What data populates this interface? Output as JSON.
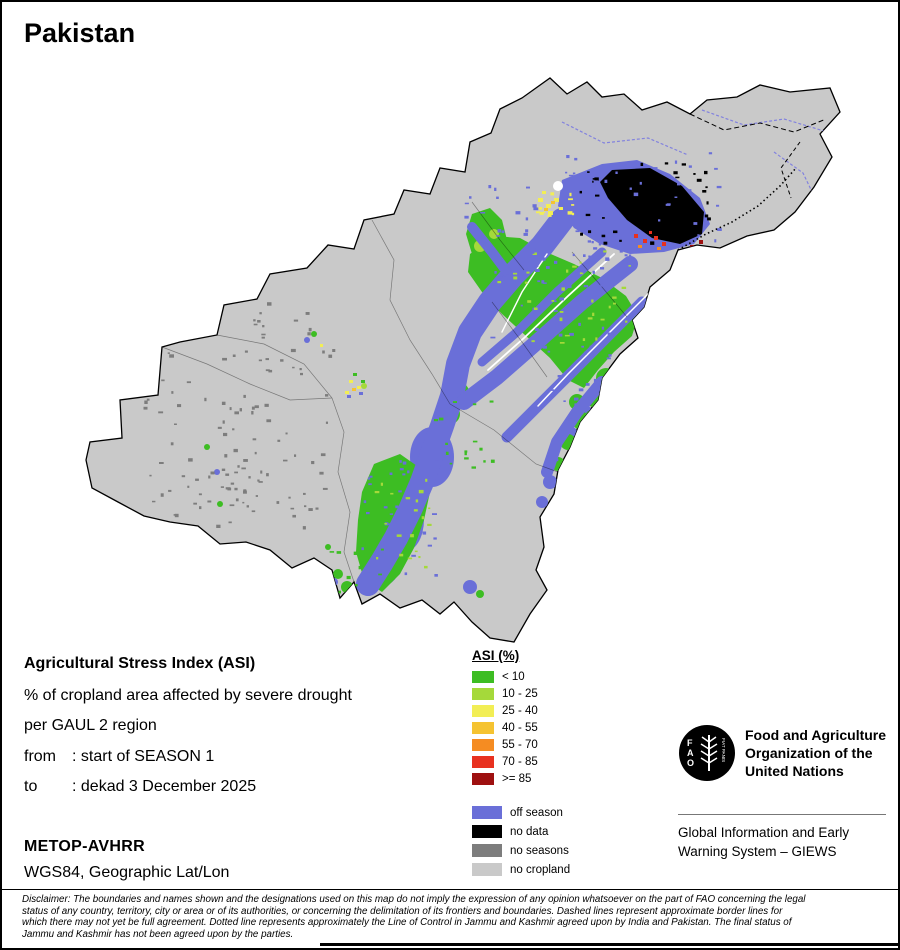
{
  "title": "Pakistan",
  "info": {
    "heading": "Agricultural Stress Index (ASI)",
    "line1": "% of cropland area affected by severe drought",
    "line2": "per GAUL 2 region",
    "from_label": "from",
    "from_value": ": start of SEASON 1",
    "to_label": "to",
    "to_value": ": dekad 3 December 2025",
    "sensor": "METOP-AVHRR",
    "projection": "WGS84, Geographic Lat/Lon"
  },
  "legend": {
    "title": "ASI (%)",
    "classes": [
      {
        "label": "< 10",
        "color": "#3dbd23"
      },
      {
        "label": "10 - 25",
        "color": "#a5d93a"
      },
      {
        "label": "25 - 40",
        "color": "#f2ee55"
      },
      {
        "label": "40 - 55",
        "color": "#f5c331"
      },
      {
        "label": "55 - 70",
        "color": "#f58c22"
      },
      {
        "label": "70 - 85",
        "color": "#e8311f"
      },
      {
        "label": ">= 85",
        "color": "#9e1010"
      }
    ],
    "extra": [
      {
        "label": "off season",
        "color": "#6a6fd8"
      },
      {
        "label": "no data",
        "color": "#000000"
      },
      {
        "label": "no seasons",
        "color": "#7d7d7d"
      },
      {
        "label": "no cropland",
        "color": "#c9c9c9"
      }
    ]
  },
  "org": {
    "logo_letters": [
      "F",
      "A",
      "O"
    ],
    "logo_motto": "FIAT PANIS",
    "fao_lines": [
      "Food and Agriculture",
      "Organization of the",
      "United Nations"
    ],
    "giews_lines": [
      "Global Information and Early",
      "Warning System – GIEWS"
    ]
  },
  "disclaimer_lines": [
    "Disclaimer: The boundaries and names shown and the designations used on this map do not imply the expression of any opinion whatsoever on the part of FAO concerning the legal",
    "status of any country, territory, city or area or of its authorities, or concerning the delimitation of its frontiers and boundaries. Dashed lines represent approximate border lines for",
    "which there may not yet be full agreement. Dotted line represents approximately the Line of Control in Jammu and Kashmir agreed upon by India and Pakistan. The final status of",
    "Jammu and Kashmir has not been agreed upon by the parties."
  ],
  "map": {
    "river_color": "#8282de",
    "outline_color": "#000000",
    "white": "#ffffff"
  }
}
